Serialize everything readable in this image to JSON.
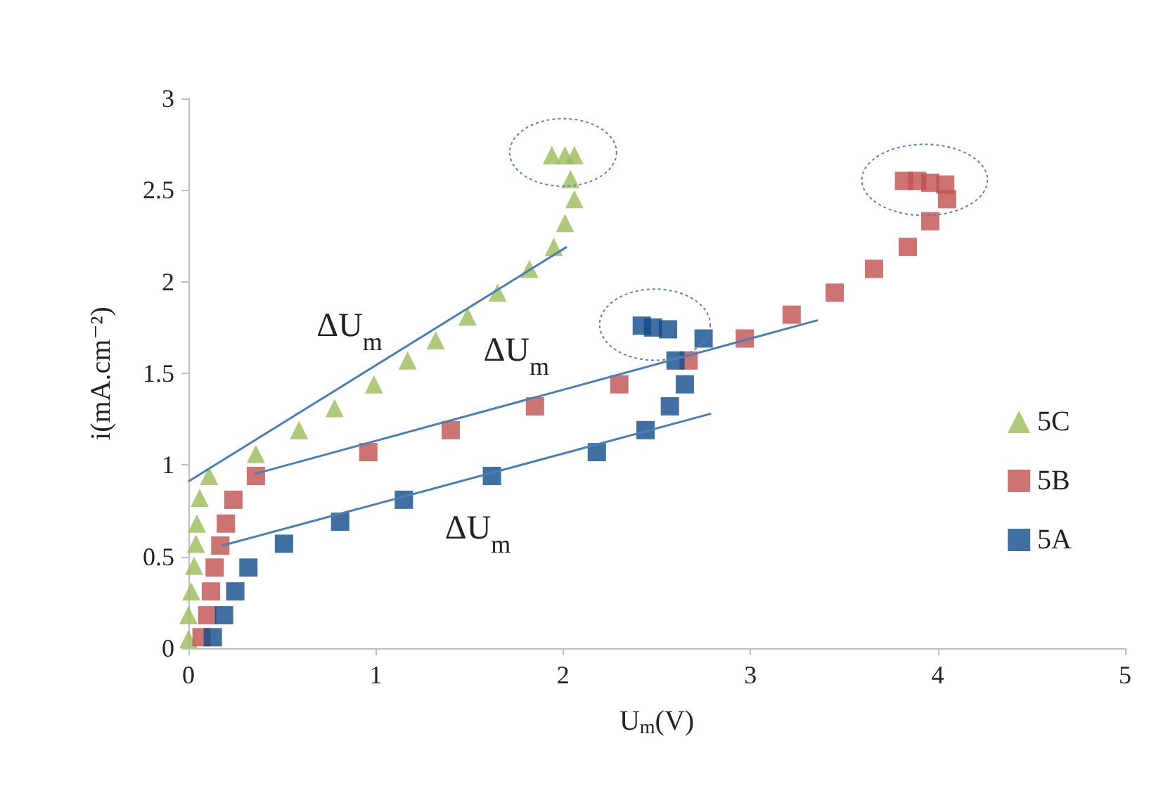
{
  "chart_data": {
    "type": "scatter",
    "xlabel": "U$_{m}$(V)",
    "ylabel": "i(mA.cm⁻²)",
    "xlim": [
      0,
      5
    ],
    "xticks": [
      0,
      1,
      2,
      3,
      4,
      5
    ],
    "ylim": [
      0,
      3
    ],
    "yticks": [
      0,
      0.5,
      1,
      1.5,
      2,
      2.5,
      3
    ],
    "grid": false,
    "legend": "right",
    "series": [
      {
        "name": "5C",
        "color": "#9bbb59",
        "marker": "triangle",
        "x": [
          0,
          0,
          0.015,
          0.03,
          0.04,
          0.045,
          0.06,
          0.11,
          0.36,
          0.59,
          0.78,
          0.99,
          1.17,
          1.32,
          1.49,
          1.65,
          1.82,
          1.95,
          2.01,
          2.06,
          2.04,
          1.94,
          2.01,
          2.06
        ],
        "values": [
          0.05,
          0.18,
          0.31,
          0.45,
          0.57,
          0.68,
          0.82,
          0.94,
          1.06,
          1.19,
          1.31,
          1.44,
          1.57,
          1.68,
          1.81,
          1.94,
          2.07,
          2.19,
          2.32,
          2.45,
          2.56,
          2.69,
          2.69,
          2.69
        ]
      },
      {
        "name": "5B",
        "color": "#c0504d",
        "marker": "square",
        "x": [
          0.07,
          0.1,
          0.12,
          0.14,
          0.17,
          0.2,
          0.24,
          0.36,
          0.96,
          1.4,
          1.85,
          2.3,
          2.67,
          2.97,
          3.22,
          3.45,
          3.66,
          3.84,
          3.96,
          4.05,
          3.82,
          3.89,
          3.96,
          4.04
        ],
        "values": [
          0.06,
          0.18,
          0.31,
          0.44,
          0.56,
          0.68,
          0.81,
          0.94,
          1.07,
          1.19,
          1.32,
          1.44,
          1.57,
          1.69,
          1.82,
          1.94,
          2.07,
          2.19,
          2.33,
          2.45,
          2.55,
          2.55,
          2.54,
          2.53
        ]
      },
      {
        "name": "5A",
        "color": "#0f4c8a",
        "marker": "square",
        "x": [
          0.13,
          0.19,
          0.25,
          0.32,
          0.51,
          0.81,
          1.15,
          1.62,
          2.18,
          2.44,
          2.57,
          2.65,
          2.6,
          2.75,
          2.42,
          2.48,
          2.56
        ],
        "values": [
          0.06,
          0.18,
          0.31,
          0.44,
          0.57,
          0.69,
          0.81,
          0.94,
          1.07,
          1.19,
          1.32,
          1.44,
          1.57,
          1.69,
          1.76,
          1.75,
          1.74
        ]
      },
      {
        "type": "line",
        "color": "#4a7ebb",
        "marker": "none",
        "line_style": "solid",
        "x": [
          0,
          2.02
        ],
        "values": [
          0.91,
          2.19
        ]
      },
      {
        "type": "line",
        "color": "#4a7ebb",
        "marker": "none",
        "line_style": "solid",
        "x": [
          0.35,
          3.36
        ],
        "values": [
          0.95,
          1.79
        ]
      },
      {
        "type": "line",
        "color": "#4a7ebb",
        "marker": "none",
        "line_style": "solid",
        "x": [
          0.18,
          2.79
        ],
        "values": [
          0.56,
          1.28
        ]
      }
    ],
    "annotations": [
      "ΔU$_{m}$",
      "ΔU$_{m}$",
      "ΔU$_{m}$"
    ]
  }
}
